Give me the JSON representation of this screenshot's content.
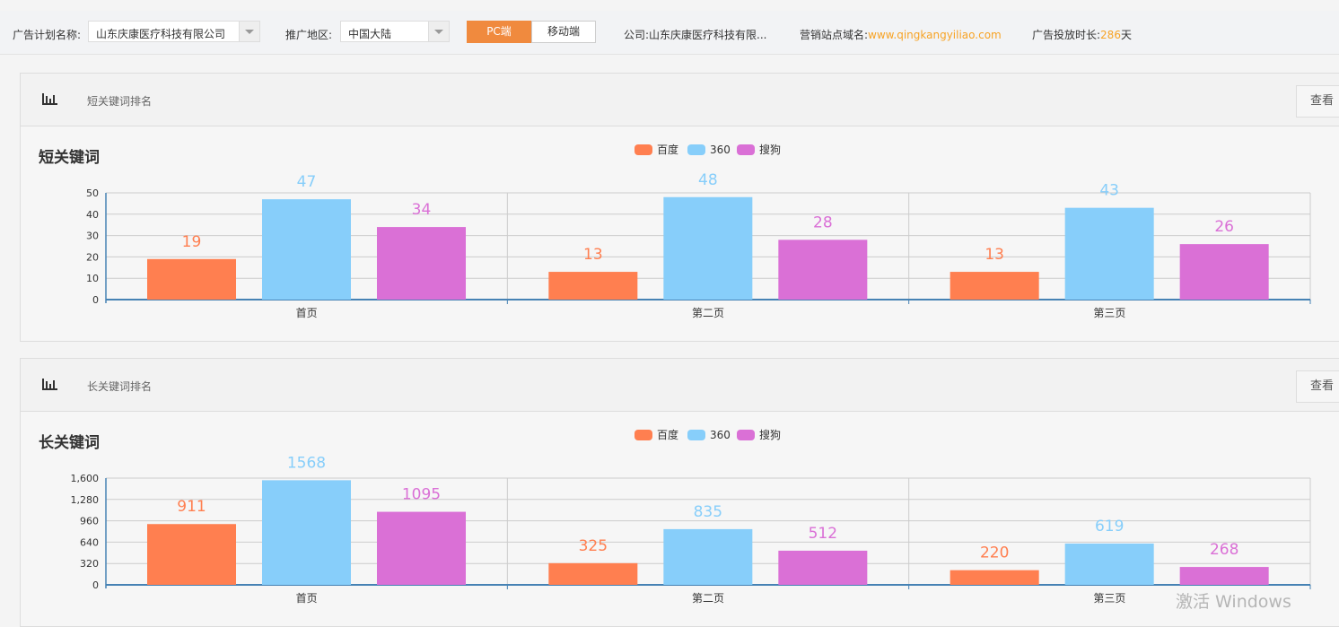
{
  "topbar": {
    "plan_label": "广告计划名称:",
    "plan_value": "山东庆康医疗科技有限公司",
    "region_label": "推广地区:",
    "region_value": "中国大陆",
    "tabs": [
      {
        "label": "PC端",
        "active": true
      },
      {
        "label": "移动端",
        "active": false
      }
    ],
    "company_label": "公司:",
    "company_value": "山东庆康医疗科技有限...",
    "domain_label": "营销站点域名:",
    "domain_value": "www.qingkangyiliao.com",
    "duration_label": "广告投放时长:",
    "duration_value": "286",
    "duration_unit": "天"
  },
  "colors": {
    "baidu": "#ff7f50",
    "s360": "#87cefa",
    "sogou": "#da70d6",
    "accent": "#f08a3e"
  },
  "cards": [
    {
      "header": "短关键词排名",
      "more": "查看",
      "icon": "bar-chart-icon"
    },
    {
      "header": "长关键词排名",
      "more": "查看",
      "icon": "bar-chart-icon"
    }
  ],
  "chart_data": [
    {
      "type": "bar",
      "title": "短关键词",
      "categories": [
        "首页",
        "第二页",
        "第三页"
      ],
      "legend_position": "top-center",
      "ylim": [
        0,
        50
      ],
      "yticks": [
        "0",
        "10",
        "20",
        "30",
        "40",
        "50"
      ],
      "ytick_values": [
        0,
        10,
        20,
        30,
        40,
        50
      ],
      "series": [
        {
          "name": "百度",
          "values": [
            19,
            13,
            13
          ]
        },
        {
          "name": "360",
          "values": [
            47,
            48,
            43
          ]
        },
        {
          "name": "搜狗",
          "values": [
            34,
            28,
            26
          ]
        }
      ]
    },
    {
      "type": "bar",
      "title": "长关键词",
      "categories": [
        "首页",
        "第二页",
        "第三页"
      ],
      "legend_position": "top-center",
      "ylim": [
        0,
        1600
      ],
      "yticks": [
        "0",
        "320",
        "640",
        "960",
        "1,280",
        "1,600"
      ],
      "ytick_values": [
        0,
        320,
        640,
        960,
        1280,
        1600
      ],
      "series": [
        {
          "name": "百度",
          "values": [
            911,
            325,
            220
          ]
        },
        {
          "name": "360",
          "values": [
            1568,
            835,
            619
          ]
        },
        {
          "name": "搜狗",
          "values": [
            1095,
            512,
            268
          ]
        }
      ]
    }
  ],
  "watermark": "激活 Windows"
}
